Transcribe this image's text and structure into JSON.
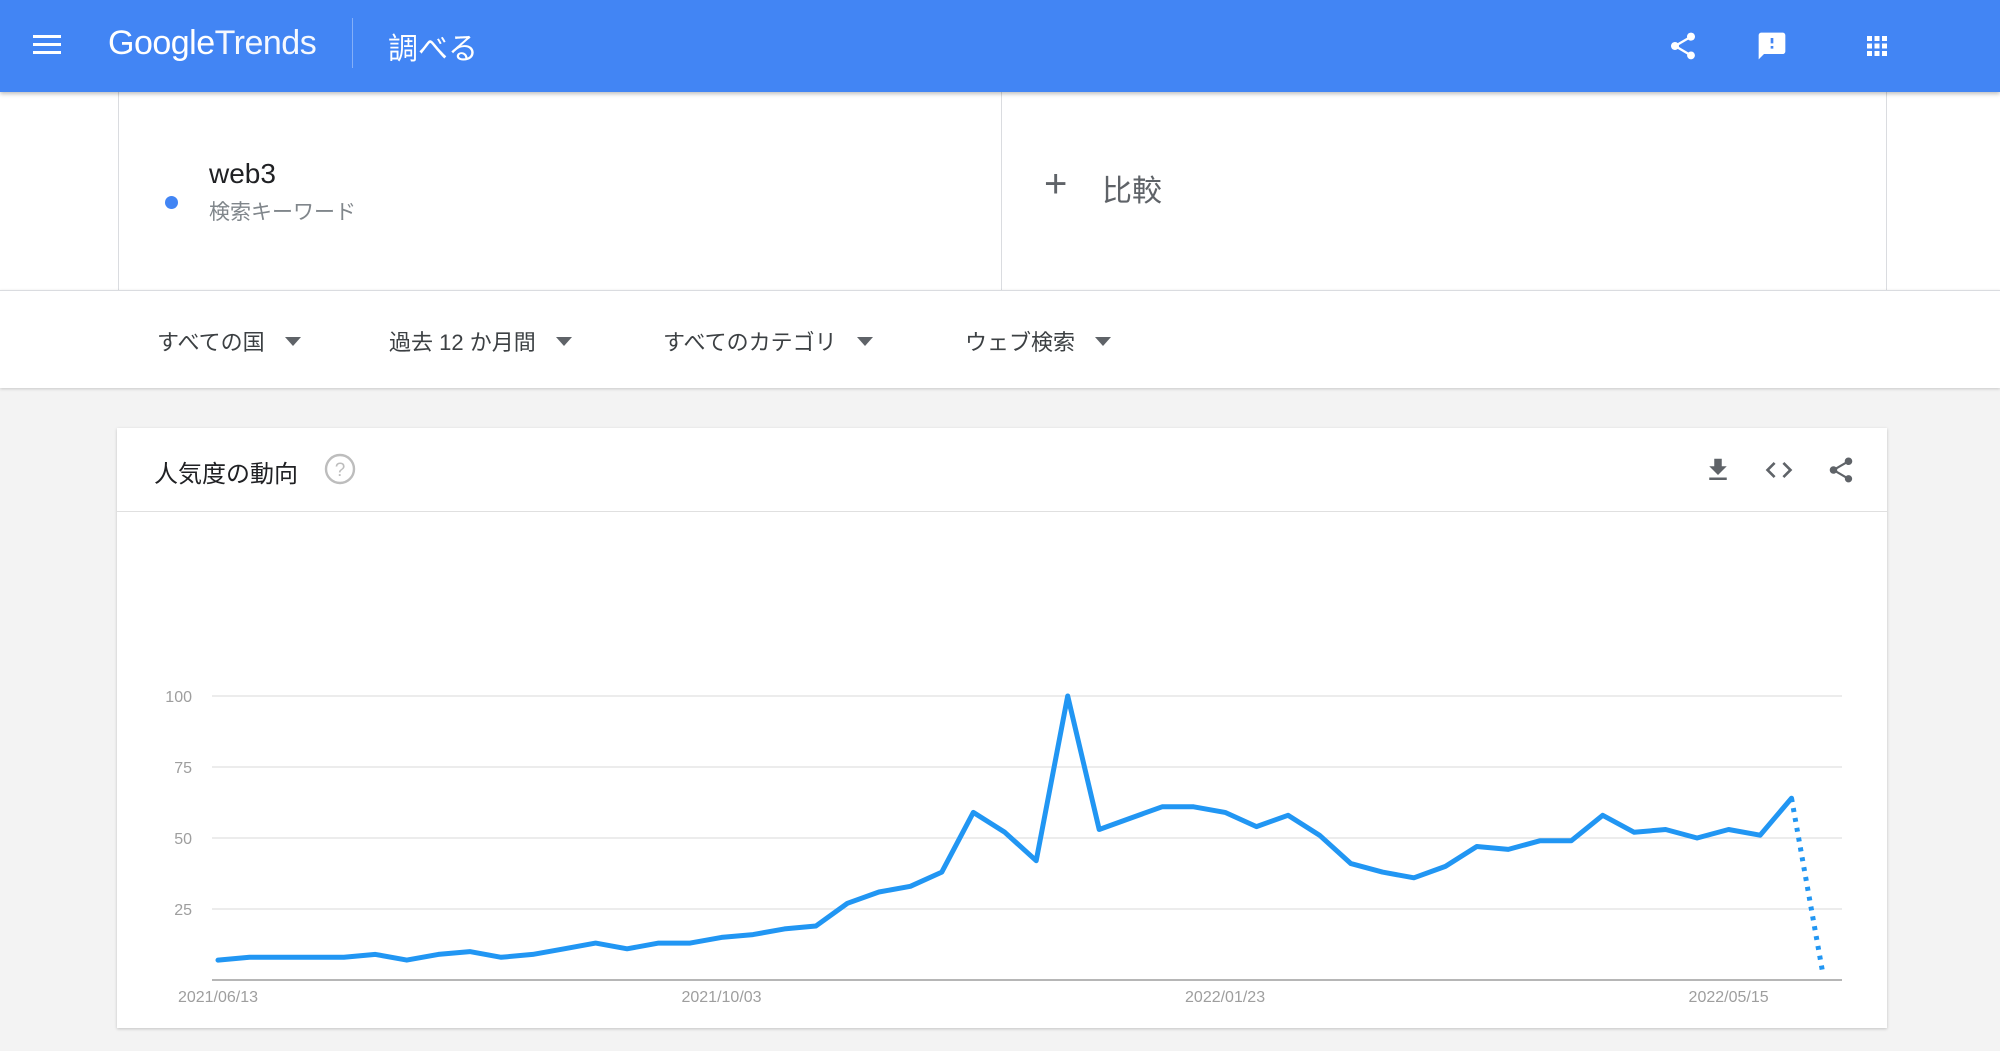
{
  "header": {
    "menu_icon": "hamburger-menu-icon",
    "logo_google": "Google",
    "logo_trends": "Trends",
    "page_label": "調べる",
    "icons": [
      "share-icon",
      "feedback-icon",
      "apps-grid-icon"
    ]
  },
  "search": {
    "term": "web3",
    "term_type": "検索キーワード",
    "term_color": "#4285f4",
    "compare_label": "比較"
  },
  "filters": [
    {
      "label": "すべての国"
    },
    {
      "label": "過去 12 か月間"
    },
    {
      "label": "すべてのカテゴリ"
    },
    {
      "label": "ウェブ検索"
    }
  ],
  "card": {
    "title": "人気度の動向",
    "icons": [
      "help-icon",
      "download-icon",
      "embed-code-icon",
      "share-icon"
    ]
  },
  "chart_data": {
    "type": "line",
    "title": "",
    "xlabel": "",
    "ylabel": "",
    "ylim": [
      0,
      100
    ],
    "yticks": [
      25,
      50,
      75,
      100
    ],
    "xtick_labels": [
      "2021/06/13",
      "2021/10/03",
      "2022/01/23",
      "2022/05/15"
    ],
    "line_color": "#2196f3",
    "grid": true,
    "series": [
      {
        "x": [
          "2021/06/13",
          "2021/06/20",
          "2021/06/27",
          "2021/07/04",
          "2021/07/11",
          "2021/07/18",
          "2021/07/25",
          "2021/08/01",
          "2021/08/08",
          "2021/08/15",
          "2021/08/22",
          "2021/08/29",
          "2021/09/05",
          "2021/09/12",
          "2021/09/19",
          "2021/09/26",
          "2021/10/03",
          "2021/10/10",
          "2021/10/17",
          "2021/10/24",
          "2021/10/31",
          "2021/11/07",
          "2021/11/14",
          "2021/11/21",
          "2021/11/28",
          "2021/12/05",
          "2021/12/12",
          "2021/12/19",
          "2021/12/26",
          "2022/01/02",
          "2022/01/09",
          "2022/01/16",
          "2022/01/23",
          "2022/01/30",
          "2022/02/06",
          "2022/02/13",
          "2022/02/20",
          "2022/02/27",
          "2022/03/06",
          "2022/03/13",
          "2022/03/20",
          "2022/03/27",
          "2022/04/03",
          "2022/04/10",
          "2022/04/17",
          "2022/04/24",
          "2022/05/01",
          "2022/05/08",
          "2022/05/15",
          "2022/05/22",
          "2022/05/29",
          "2022/06/05"
        ],
        "values": [
          7,
          8,
          8,
          8,
          8,
          9,
          7,
          9,
          10,
          8,
          9,
          11,
          13,
          11,
          13,
          13,
          15,
          16,
          18,
          19,
          27,
          31,
          33,
          38,
          59,
          52,
          42,
          100,
          53,
          57,
          61,
          61,
          59,
          54,
          58,
          51,
          41,
          38,
          36,
          40,
          47,
          46,
          49,
          49,
          58,
          52,
          53,
          50,
          53,
          51,
          64,
          2
        ],
        "partial_last_point": true
      }
    ]
  }
}
